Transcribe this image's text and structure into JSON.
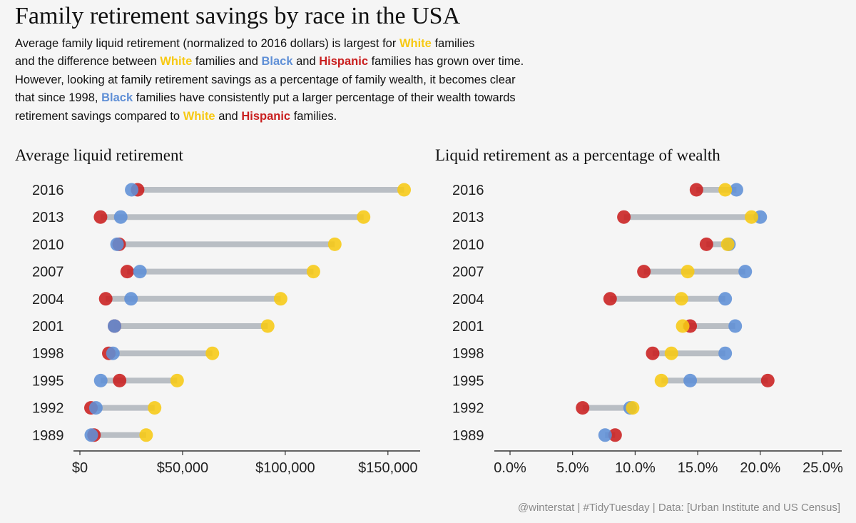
{
  "title": "Family retirement savings by race in the USA",
  "subtitle": [
    [
      {
        "t": "Average family liquid retirement (normalized to 2016 dollars) is largest for "
      },
      {
        "t": "White",
        "c": "white"
      },
      {
        "t": " families"
      }
    ],
    [
      {
        "t": "and the difference between "
      },
      {
        "t": "White",
        "c": "white"
      },
      {
        "t": " families and "
      },
      {
        "t": "Black",
        "c": "black"
      },
      {
        "t": " and "
      },
      {
        "t": "Hispanic",
        "c": "hispanic"
      },
      {
        "t": " families has grown over time."
      }
    ],
    [
      {
        "t": "However, looking at family retirement savings as a percentage of family wealth, it becomes clear"
      }
    ],
    [
      {
        "t": "that since 1998, "
      },
      {
        "t": "Black",
        "c": "black"
      },
      {
        "t": " families have consistently put a larger percentage of their wealth towards"
      }
    ],
    [
      {
        "t": "retirement savings compared to "
      },
      {
        "t": "White",
        "c": "white"
      },
      {
        "t": " and "
      },
      {
        "t": "Hispanic",
        "c": "hispanic"
      },
      {
        "t": " families."
      }
    ]
  ],
  "caption": "@winterstat | #TidyTuesday | Data: [Urban Institute and US Census]",
  "colors": {
    "white": "#f7c913",
    "black": "#5f8fd6",
    "hispanic": "#c91f1f",
    "segment": "#b9bec4",
    "axis": "#333333"
  },
  "chart_data": [
    {
      "type": "scatter",
      "title": "Average liquid retirement",
      "years": [
        "2016",
        "2013",
        "2010",
        "2007",
        "2004",
        "2001",
        "1998",
        "1995",
        "1992",
        "1989"
      ],
      "series": [
        {
          "name": "White",
          "key": "white",
          "values": [
            157884,
            138153,
            124116,
            113726,
            97753,
            91452,
            64518,
            47349,
            36380,
            32262
          ]
        },
        {
          "name": "Black",
          "key": "black",
          "values": [
            25212,
            19877,
            18093,
            29227,
            24904,
            16848,
            16079,
            10155,
            7778,
            5551
          ]
        },
        {
          "name": "Hispanic",
          "key": "hispanic",
          "values": [
            28110,
            10047,
            19120,
            23055,
            12579,
            16873,
            14071,
            19333,
            5386,
            6879
          ]
        }
      ],
      "xlim": [
        0,
        165000
      ],
      "ticks": [
        0,
        50000,
        100000,
        150000
      ],
      "tick_labels": [
        "$0",
        "$50,000",
        "$100,000",
        "$150,000"
      ]
    },
    {
      "type": "scatter",
      "title": "Liquid retirement as a percentage of wealth",
      "years": [
        "2016",
        "2013",
        "2010",
        "2007",
        "2004",
        "2001",
        "1998",
        "1995",
        "1992",
        "1989"
      ],
      "series": [
        {
          "name": "White",
          "key": "white",
          "values": [
            17.2,
            19.3,
            17.4,
            14.2,
            13.7,
            13.8,
            12.9,
            12.1,
            9.8,
            null
          ]
        },
        {
          "name": "Black",
          "key": "black",
          "values": [
            18.1,
            20.0,
            17.5,
            18.8,
            17.2,
            18.0,
            17.2,
            14.4,
            9.6,
            7.6
          ]
        },
        {
          "name": "Hispanic",
          "key": "hispanic",
          "values": [
            14.9,
            9.1,
            15.7,
            10.7,
            8.0,
            14.4,
            11.4,
            20.6,
            5.8,
            8.4
          ]
        }
      ],
      "xlim": [
        0,
        26
      ],
      "ticks": [
        0,
        5,
        10,
        15,
        20,
        25
      ],
      "tick_labels": [
        "0.0%",
        "5.0%",
        "10.0%",
        "15.0%",
        "20.0%",
        "25.0%"
      ]
    }
  ]
}
